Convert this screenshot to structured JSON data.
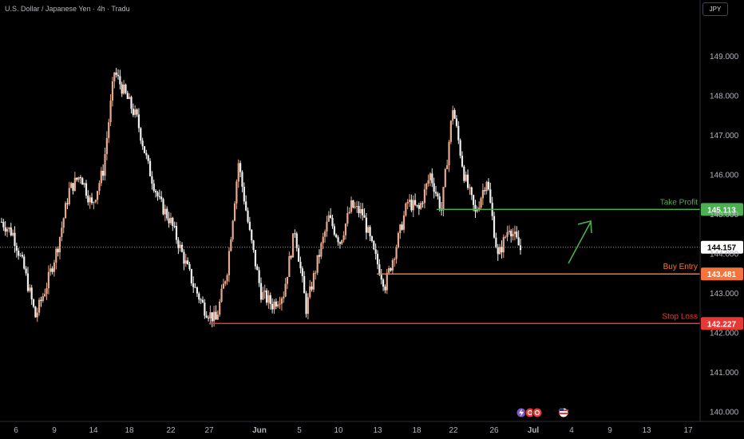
{
  "header": {
    "symbol_title": "U.S. Dollar / Japanese Yen · 4h · Tradu",
    "currency": "JPY"
  },
  "colors": {
    "background": "#000000",
    "candle_up": "#e8a98c",
    "candle_down": "#f0f0f0",
    "take_profit": "#4caf50",
    "buy_entry": "#f4743b",
    "stop_loss": "#e53935",
    "current_price_badge": "#ffffff",
    "arrow": "#4caf50"
  },
  "chart_data": {
    "type": "candlestick",
    "ylim": [
      139.8,
      150.0
    ],
    "y_ticks": [
      "149.000",
      "148.000",
      "147.000",
      "146.000",
      "145.000",
      "144.000",
      "143.000",
      "142.000",
      "141.000",
      "140.000"
    ],
    "y_tick_values": [
      149,
      148,
      147,
      146,
      145,
      144,
      143,
      142,
      141,
      140
    ],
    "x_ticks": [
      "6",
      "9",
      "14",
      "18",
      "22",
      "27",
      "Jun",
      "5",
      "10",
      "13",
      "18",
      "22",
      "26",
      "Jul",
      "4",
      "9",
      "13",
      "17"
    ],
    "price_path": [
      144.8,
      144.5,
      143.6,
      142.4,
      143.2,
      144.2,
      145.6,
      146.0,
      145.2,
      146.1,
      148.6,
      148.0,
      147.4,
      146.2,
      145.3,
      144.8,
      144.0,
      143.2,
      142.6,
      142.3,
      143.6,
      146.3,
      144.5,
      143.0,
      142.7,
      143.0,
      144.6,
      142.6,
      143.8,
      144.9,
      144.3,
      145.2,
      145.0,
      144.0,
      143.2,
      144.2,
      145.3,
      145.1,
      146.0,
      145.1,
      147.7,
      146.0,
      145.0,
      145.9,
      143.9,
      144.7,
      144.1
    ]
  },
  "levels": {
    "take_profit": {
      "label": "Take Profit",
      "price": 145.113,
      "price_text": "145.113"
    },
    "buy_entry": {
      "label": "Buy Entry",
      "price": 143.481,
      "price_text": "143.481"
    },
    "stop_loss": {
      "label": "Stop Loss",
      "price": 142.227,
      "price_text": "142.227"
    },
    "current_price": {
      "price": 144.157,
      "price_text": "144.157"
    }
  },
  "icons": [
    "flash-icon",
    "dividend-icon",
    "split-icon",
    "us-flag-icon"
  ]
}
